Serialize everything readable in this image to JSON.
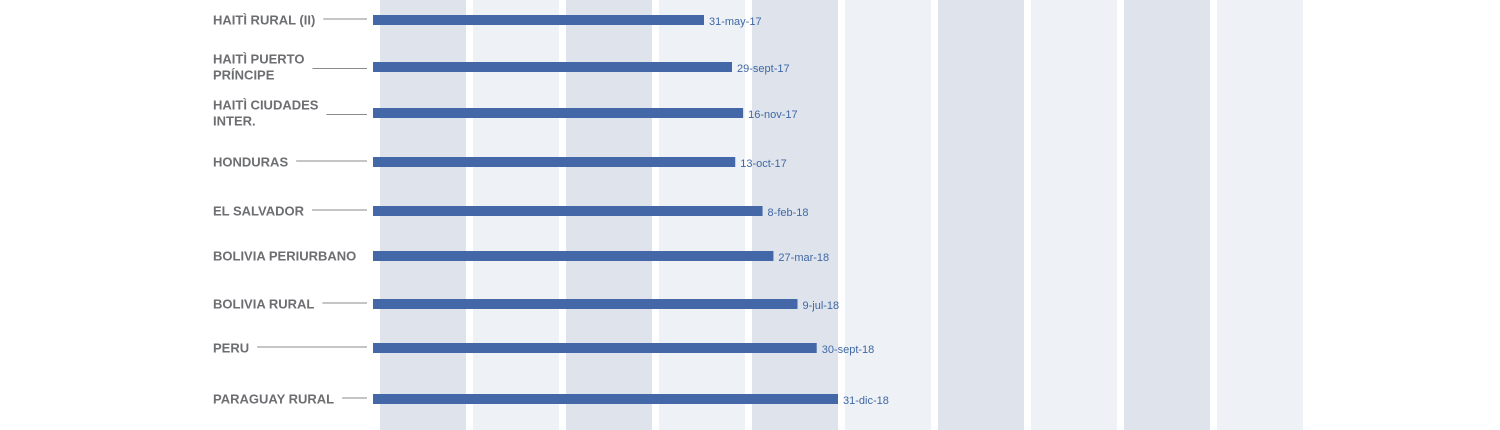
{
  "chart_data": {
    "type": "bar",
    "orientation": "horizontal",
    "categories": [
      [
        "HAITÌ RURAL (II)"
      ],
      [
        "HAITÌ PUERTO",
        "PRÍNCIPE"
      ],
      [
        "HAITÌ CIUDADES",
        "INTER."
      ],
      [
        "HONDURAS"
      ],
      [
        "EL SALVADOR"
      ],
      [
        "BOLIVIA PERIURBANO"
      ],
      [
        "BOLIVIA RURAL"
      ],
      [
        "PERU"
      ],
      [
        "PARAGUAY RURAL"
      ]
    ],
    "values": [
      "2017-05-31",
      "2017-09-29",
      "2017-11-16",
      "2017-10-13",
      "2018-02-08",
      "2018-03-27",
      "2018-07-09",
      "2018-09-30",
      "2018-12-31"
    ],
    "data_labels": [
      "31-may-17",
      "29-sept-17",
      "16-nov-17",
      "13-oct-17",
      "8-feb-18",
      "27-mar-18",
      "9-jul-18",
      "30-sept-18",
      "31-dic-18"
    ],
    "bar_color": "#4468a7",
    "label_color": "#6d6e71",
    "data_label_color": "#3f67a4",
    "background_band_colors": [
      "#dfe4ec",
      "#eef1f5"
    ]
  }
}
